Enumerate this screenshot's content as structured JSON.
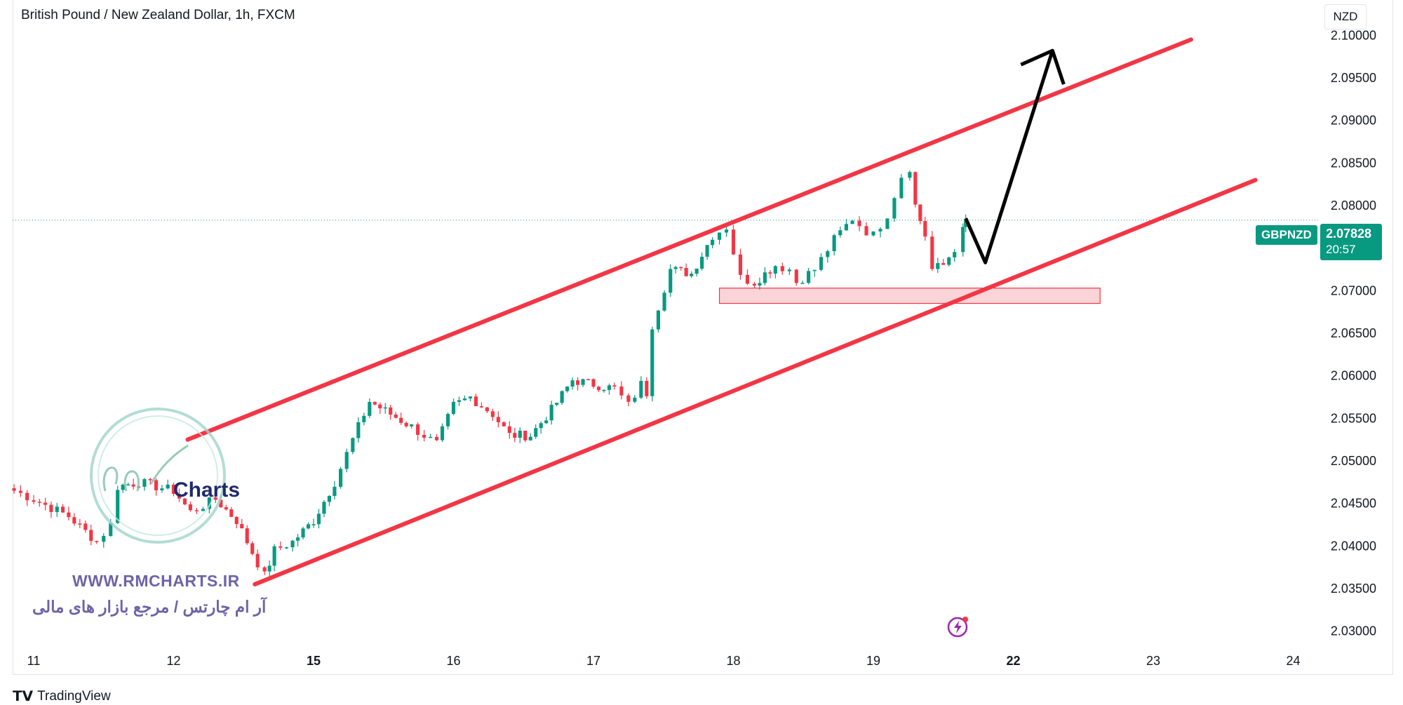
{
  "header": {
    "title": "British Pound / New Zealand Dollar, 1h, FXCM",
    "currency": "NZD"
  },
  "badges": {
    "symbol": "GBPNZD",
    "last_price": "2.07828",
    "countdown": "20:57"
  },
  "watermark": {
    "url": "WWW.RMCHARTS.IR",
    "tagline": "آر ام چارتس / مرجع بازار های مالی",
    "logo_text": "Charts"
  },
  "footer": {
    "brand": "TradingView"
  },
  "colors": {
    "up": "#089981",
    "down": "#f23645",
    "channel": "#f23645",
    "zone_fill": "#fbd4d8",
    "arrow": "#000000",
    "price_line": "#089981"
  },
  "chart_data": {
    "type": "candlestick",
    "symbol": "GBPNZD",
    "timeframe": "1h",
    "ylim": [
      2.0275,
      2.1025
    ],
    "price_ticks": [
      2.03,
      2.035,
      2.04,
      2.045,
      2.05,
      2.055,
      2.06,
      2.065,
      2.07,
      2.075,
      2.08,
      2.085,
      2.09,
      2.095,
      2.1
    ],
    "price_tick_labels": [
      "2.03000",
      "2.03500",
      "2.04000",
      "2.04500",
      "2.05000",
      "2.05500",
      "2.06000",
      "2.06500",
      "2.07000",
      "2.07500",
      "2.08000",
      "2.08500",
      "2.09000",
      "2.09500",
      "2.10000"
    ],
    "time_ticks": [
      {
        "label": "11",
        "day": 0,
        "bold": false
      },
      {
        "label": "12",
        "day": 1,
        "bold": false
      },
      {
        "label": "15",
        "day": 2,
        "bold": true
      },
      {
        "label": "16",
        "day": 3,
        "bold": false
      },
      {
        "label": "17",
        "day": 4,
        "bold": false
      },
      {
        "label": "18",
        "day": 5,
        "bold": false
      },
      {
        "label": "19",
        "day": 6,
        "bold": false
      },
      {
        "label": "22",
        "day": 7,
        "bold": true
      },
      {
        "label": "23",
        "day": 8,
        "bold": false
      },
      {
        "label": "24",
        "day": 9,
        "bold": false
      }
    ],
    "last_price": 2.07828,
    "path": [
      [
        -0.14,
        2.0465
      ],
      [
        0.0,
        2.0455
      ],
      [
        0.25,
        2.0435
      ],
      [
        0.45,
        2.0405
      ],
      [
        0.55,
        2.0425
      ],
      [
        0.6,
        2.047
      ],
      [
        0.75,
        2.0475
      ],
      [
        1.0,
        2.0465
      ],
      [
        1.12,
        2.044
      ],
      [
        1.3,
        2.0455
      ],
      [
        1.45,
        2.043
      ],
      [
        1.6,
        2.038
      ],
      [
        1.65,
        2.0365
      ],
      [
        1.72,
        2.0395
      ],
      [
        1.85,
        2.0405
      ],
      [
        2.0,
        2.043
      ],
      [
        2.15,
        2.0475
      ],
      [
        2.28,
        2.0525
      ],
      [
        2.4,
        2.057
      ],
      [
        2.55,
        2.0555
      ],
      [
        2.7,
        2.054
      ],
      [
        2.88,
        2.052
      ],
      [
        3.0,
        2.0565
      ],
      [
        3.12,
        2.0575
      ],
      [
        3.28,
        2.0555
      ],
      [
        3.4,
        2.053
      ],
      [
        3.55,
        2.053
      ],
      [
        3.7,
        2.056
      ],
      [
        3.85,
        2.0595
      ],
      [
        4.0,
        2.059
      ],
      [
        4.15,
        2.0585
      ],
      [
        4.25,
        2.0565
      ],
      [
        4.34,
        2.059
      ],
      [
        4.38,
        2.058
      ],
      [
        4.42,
        2.066
      ],
      [
        4.55,
        2.0725
      ],
      [
        4.7,
        2.072
      ],
      [
        4.85,
        2.0765
      ],
      [
        4.95,
        2.0775
      ],
      [
        5.0,
        2.0745
      ],
      [
        5.05,
        2.0715
      ],
      [
        5.15,
        2.071
      ],
      [
        5.3,
        2.073
      ],
      [
        5.4,
        2.0725
      ],
      [
        5.45,
        2.071
      ],
      [
        5.58,
        2.0725
      ],
      [
        5.72,
        2.076
      ],
      [
        5.85,
        2.0785
      ],
      [
        5.95,
        2.077
      ],
      [
        6.0,
        2.0765
      ],
      [
        6.1,
        2.079
      ],
      [
        6.2,
        2.0835
      ],
      [
        6.26,
        2.0845
      ],
      [
        6.3,
        2.08
      ],
      [
        6.37,
        2.0765
      ],
      [
        6.42,
        2.0725
      ],
      [
        6.5,
        2.073
      ],
      [
        6.58,
        2.075
      ],
      [
        6.64,
        2.077
      ],
      [
        6.66,
        2.07828
      ]
    ],
    "channel": {
      "upper": {
        "from": [
          1.1,
          2.0525
        ],
        "to": [
          8.27,
          2.0995
        ]
      },
      "lower": {
        "from": [
          1.58,
          2.0355
        ],
        "to": [
          8.73,
          2.083
        ]
      }
    },
    "support_zone": {
      "x_from": 4.9,
      "x_to": 7.62,
      "y_from": 2.0685,
      "y_to": 2.0703
    },
    "projection": [
      [
        6.66,
        2.0785
      ],
      [
        6.8,
        2.0733
      ],
      [
        7.28,
        2.0982
      ]
    ]
  }
}
